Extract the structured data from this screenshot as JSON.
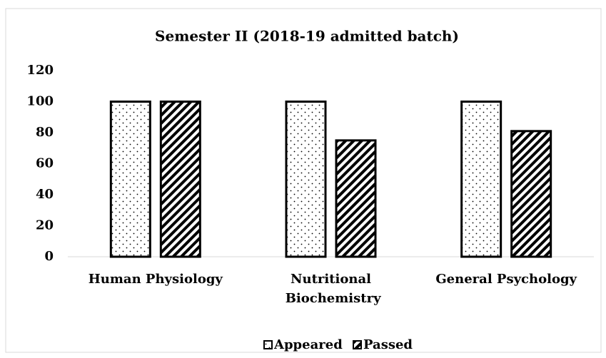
{
  "chart_data": {
    "type": "bar",
    "title": "Semester II (2018-19 admitted batch)",
    "categories": [
      "Human Physiology",
      "Nutritional Biochemistry",
      "General Psychology"
    ],
    "series": [
      {
        "name": "Appeared",
        "color": "#000000",
        "pattern": "dots",
        "values": [
          100,
          100,
          100
        ]
      },
      {
        "name": "Passed",
        "color": "#000000",
        "pattern": "hatch",
        "values": [
          100,
          75,
          81
        ]
      }
    ],
    "ylim": [
      0,
      120
    ],
    "yticks": [
      0,
      20,
      40,
      60,
      80,
      100,
      120
    ],
    "grid": false,
    "legend": "bottom"
  }
}
